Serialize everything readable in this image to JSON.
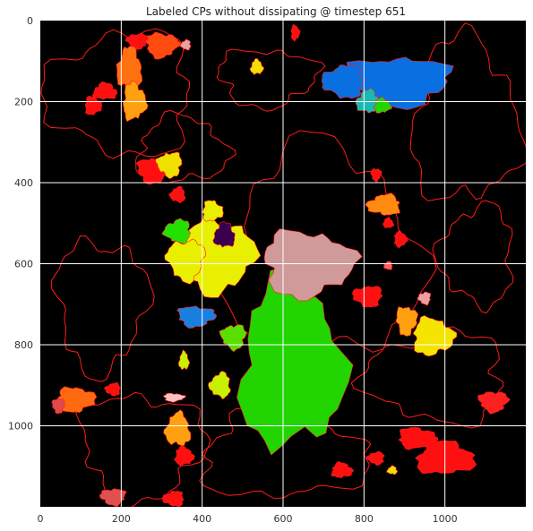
{
  "chart_data": {
    "type": "heatmap",
    "title": "Labeled CPs without dissipating @ timestep 651",
    "xlabel": "",
    "ylabel": "",
    "xlim": [
      0,
      1200
    ],
    "ylim": [
      1200,
      0
    ],
    "x_ticks": [
      0,
      200,
      400,
      600,
      800,
      1000
    ],
    "y_ticks": [
      0,
      200,
      400,
      600,
      800,
      1000
    ],
    "grid": true,
    "background_color": "#000000",
    "grid_color": "#ffffff",
    "boundary_color": "#ff1a1a",
    "regions": [
      {
        "cx": 620,
        "cy": 850,
        "rx": 125,
        "ry": 205,
        "color": "#22d400"
      },
      {
        "cx": 660,
        "cy": 600,
        "rx": 110,
        "ry": 80,
        "color": "#d09a9a"
      },
      {
        "cx": 880,
        "cy": 150,
        "rx": 130,
        "ry": 60,
        "color": "#0a6fe0"
      },
      {
        "cx": 750,
        "cy": 150,
        "rx": 50,
        "ry": 40,
        "color": "#0a6fe0"
      },
      {
        "cx": 810,
        "cy": 200,
        "rx": 28,
        "ry": 28,
        "color": "#1ab8b0"
      },
      {
        "cx": 845,
        "cy": 210,
        "rx": 20,
        "ry": 18,
        "color": "#22d400"
      },
      {
        "cx": 440,
        "cy": 580,
        "rx": 85,
        "ry": 90,
        "color": "#e8f000"
      },
      {
        "cx": 360,
        "cy": 590,
        "rx": 45,
        "ry": 50,
        "color": "#e8f000"
      },
      {
        "cx": 340,
        "cy": 520,
        "rx": 32,
        "ry": 28,
        "color": "#22e000"
      },
      {
        "cx": 455,
        "cy": 530,
        "rx": 25,
        "ry": 30,
        "color": "#3a0050"
      },
      {
        "cx": 425,
        "cy": 470,
        "rx": 25,
        "ry": 25,
        "color": "#e8f000"
      },
      {
        "cx": 385,
        "cy": 730,
        "rx": 45,
        "ry": 25,
        "color": "#1a80e0"
      },
      {
        "cx": 478,
        "cy": 780,
        "rx": 30,
        "ry": 30,
        "color": "#5ae000"
      },
      {
        "cx": 445,
        "cy": 900,
        "rx": 25,
        "ry": 30,
        "color": "#c8f000"
      },
      {
        "cx": 355,
        "cy": 840,
        "rx": 12,
        "ry": 22,
        "color": "#c8f000"
      },
      {
        "cx": 970,
        "cy": 780,
        "rx": 50,
        "ry": 45,
        "color": "#f4e400"
      },
      {
        "cx": 905,
        "cy": 740,
        "rx": 25,
        "ry": 35,
        "color": "#ffa010"
      },
      {
        "cx": 810,
        "cy": 680,
        "rx": 35,
        "ry": 25,
        "color": "#ff1010"
      },
      {
        "cx": 850,
        "cy": 455,
        "rx": 40,
        "ry": 25,
        "color": "#ff8a10"
      },
      {
        "cx": 860,
        "cy": 500,
        "rx": 12,
        "ry": 12,
        "color": "#ff1010"
      },
      {
        "cx": 890,
        "cy": 540,
        "rx": 15,
        "ry": 18,
        "color": "#ff1010"
      },
      {
        "cx": 830,
        "cy": 380,
        "rx": 12,
        "ry": 15,
        "color": "#ff1010"
      },
      {
        "cx": 950,
        "cy": 685,
        "rx": 15,
        "ry": 15,
        "color": "#e8a0a0"
      },
      {
        "cx": 860,
        "cy": 605,
        "rx": 10,
        "ry": 10,
        "color": "#ff6060"
      },
      {
        "cx": 1000,
        "cy": 1080,
        "rx": 70,
        "ry": 40,
        "color": "#ff1010"
      },
      {
        "cx": 930,
        "cy": 1030,
        "rx": 45,
        "ry": 25,
        "color": "#ff1010"
      },
      {
        "cx": 1120,
        "cy": 940,
        "rx": 35,
        "ry": 25,
        "color": "#ff2020"
      },
      {
        "cx": 830,
        "cy": 1080,
        "rx": 20,
        "ry": 15,
        "color": "#ff1010"
      },
      {
        "cx": 870,
        "cy": 1110,
        "rx": 12,
        "ry": 10,
        "color": "#f0e000"
      },
      {
        "cx": 745,
        "cy": 1110,
        "rx": 25,
        "ry": 18,
        "color": "#ff1010"
      },
      {
        "cx": 88,
        "cy": 935,
        "rx": 45,
        "ry": 30,
        "color": "#ff6a10"
      },
      {
        "cx": 45,
        "cy": 950,
        "rx": 15,
        "ry": 18,
        "color": "#e04a4a"
      },
      {
        "cx": 180,
        "cy": 910,
        "rx": 18,
        "ry": 15,
        "color": "#ff1010"
      },
      {
        "cx": 340,
        "cy": 1010,
        "rx": 30,
        "ry": 40,
        "color": "#ffa010"
      },
      {
        "cx": 355,
        "cy": 1075,
        "rx": 22,
        "ry": 22,
        "color": "#ff1010"
      },
      {
        "cx": 330,
        "cy": 930,
        "rx": 25,
        "ry": 10,
        "color": "#ffc0c0"
      },
      {
        "cx": 180,
        "cy": 1175,
        "rx": 30,
        "ry": 20,
        "color": "#e05050"
      },
      {
        "cx": 330,
        "cy": 1180,
        "rx": 25,
        "ry": 18,
        "color": "#ff1010"
      },
      {
        "cx": 220,
        "cy": 118,
        "rx": 30,
        "ry": 50,
        "color": "#ff7010"
      },
      {
        "cx": 232,
        "cy": 200,
        "rx": 28,
        "ry": 45,
        "color": "#ffa010"
      },
      {
        "cx": 300,
        "cy": 60,
        "rx": 40,
        "ry": 30,
        "color": "#ff4a10"
      },
      {
        "cx": 240,
        "cy": 50,
        "rx": 25,
        "ry": 18,
        "color": "#ff1010"
      },
      {
        "cx": 360,
        "cy": 60,
        "rx": 12,
        "ry": 12,
        "color": "#e8a0a0"
      },
      {
        "cx": 160,
        "cy": 175,
        "rx": 28,
        "ry": 20,
        "color": "#ff1010"
      },
      {
        "cx": 130,
        "cy": 210,
        "rx": 20,
        "ry": 22,
        "color": "#ff1010"
      },
      {
        "cx": 280,
        "cy": 370,
        "rx": 40,
        "ry": 30,
        "color": "#ff1010"
      },
      {
        "cx": 320,
        "cy": 355,
        "rx": 30,
        "ry": 30,
        "color": "#f0e000"
      },
      {
        "cx": 340,
        "cy": 430,
        "rx": 18,
        "ry": 18,
        "color": "#ff1010"
      },
      {
        "cx": 535,
        "cy": 115,
        "rx": 15,
        "ry": 18,
        "color": "#f0e000"
      },
      {
        "cx": 630,
        "cy": 30,
        "rx": 10,
        "ry": 18,
        "color": "#ff1010"
      }
    ],
    "boundary_loops": [
      {
        "cx": 700,
        "cy": 580,
        "rx": 230,
        "ry": 260
      },
      {
        "cx": 560,
        "cy": 140,
        "rx": 120,
        "ry": 70
      },
      {
        "cx": 200,
        "cy": 180,
        "rx": 180,
        "ry": 150
      },
      {
        "cx": 1050,
        "cy": 250,
        "rx": 130,
        "ry": 200
      },
      {
        "cx": 150,
        "cy": 700,
        "rx": 110,
        "ry": 160
      },
      {
        "cx": 980,
        "cy": 880,
        "rx": 170,
        "ry": 110
      },
      {
        "cx": 600,
        "cy": 1070,
        "rx": 200,
        "ry": 110
      },
      {
        "cx": 250,
        "cy": 1050,
        "rx": 150,
        "ry": 130
      },
      {
        "cx": 1080,
        "cy": 580,
        "rx": 90,
        "ry": 120
      },
      {
        "cx": 350,
        "cy": 320,
        "rx": 110,
        "ry": 80
      }
    ]
  }
}
